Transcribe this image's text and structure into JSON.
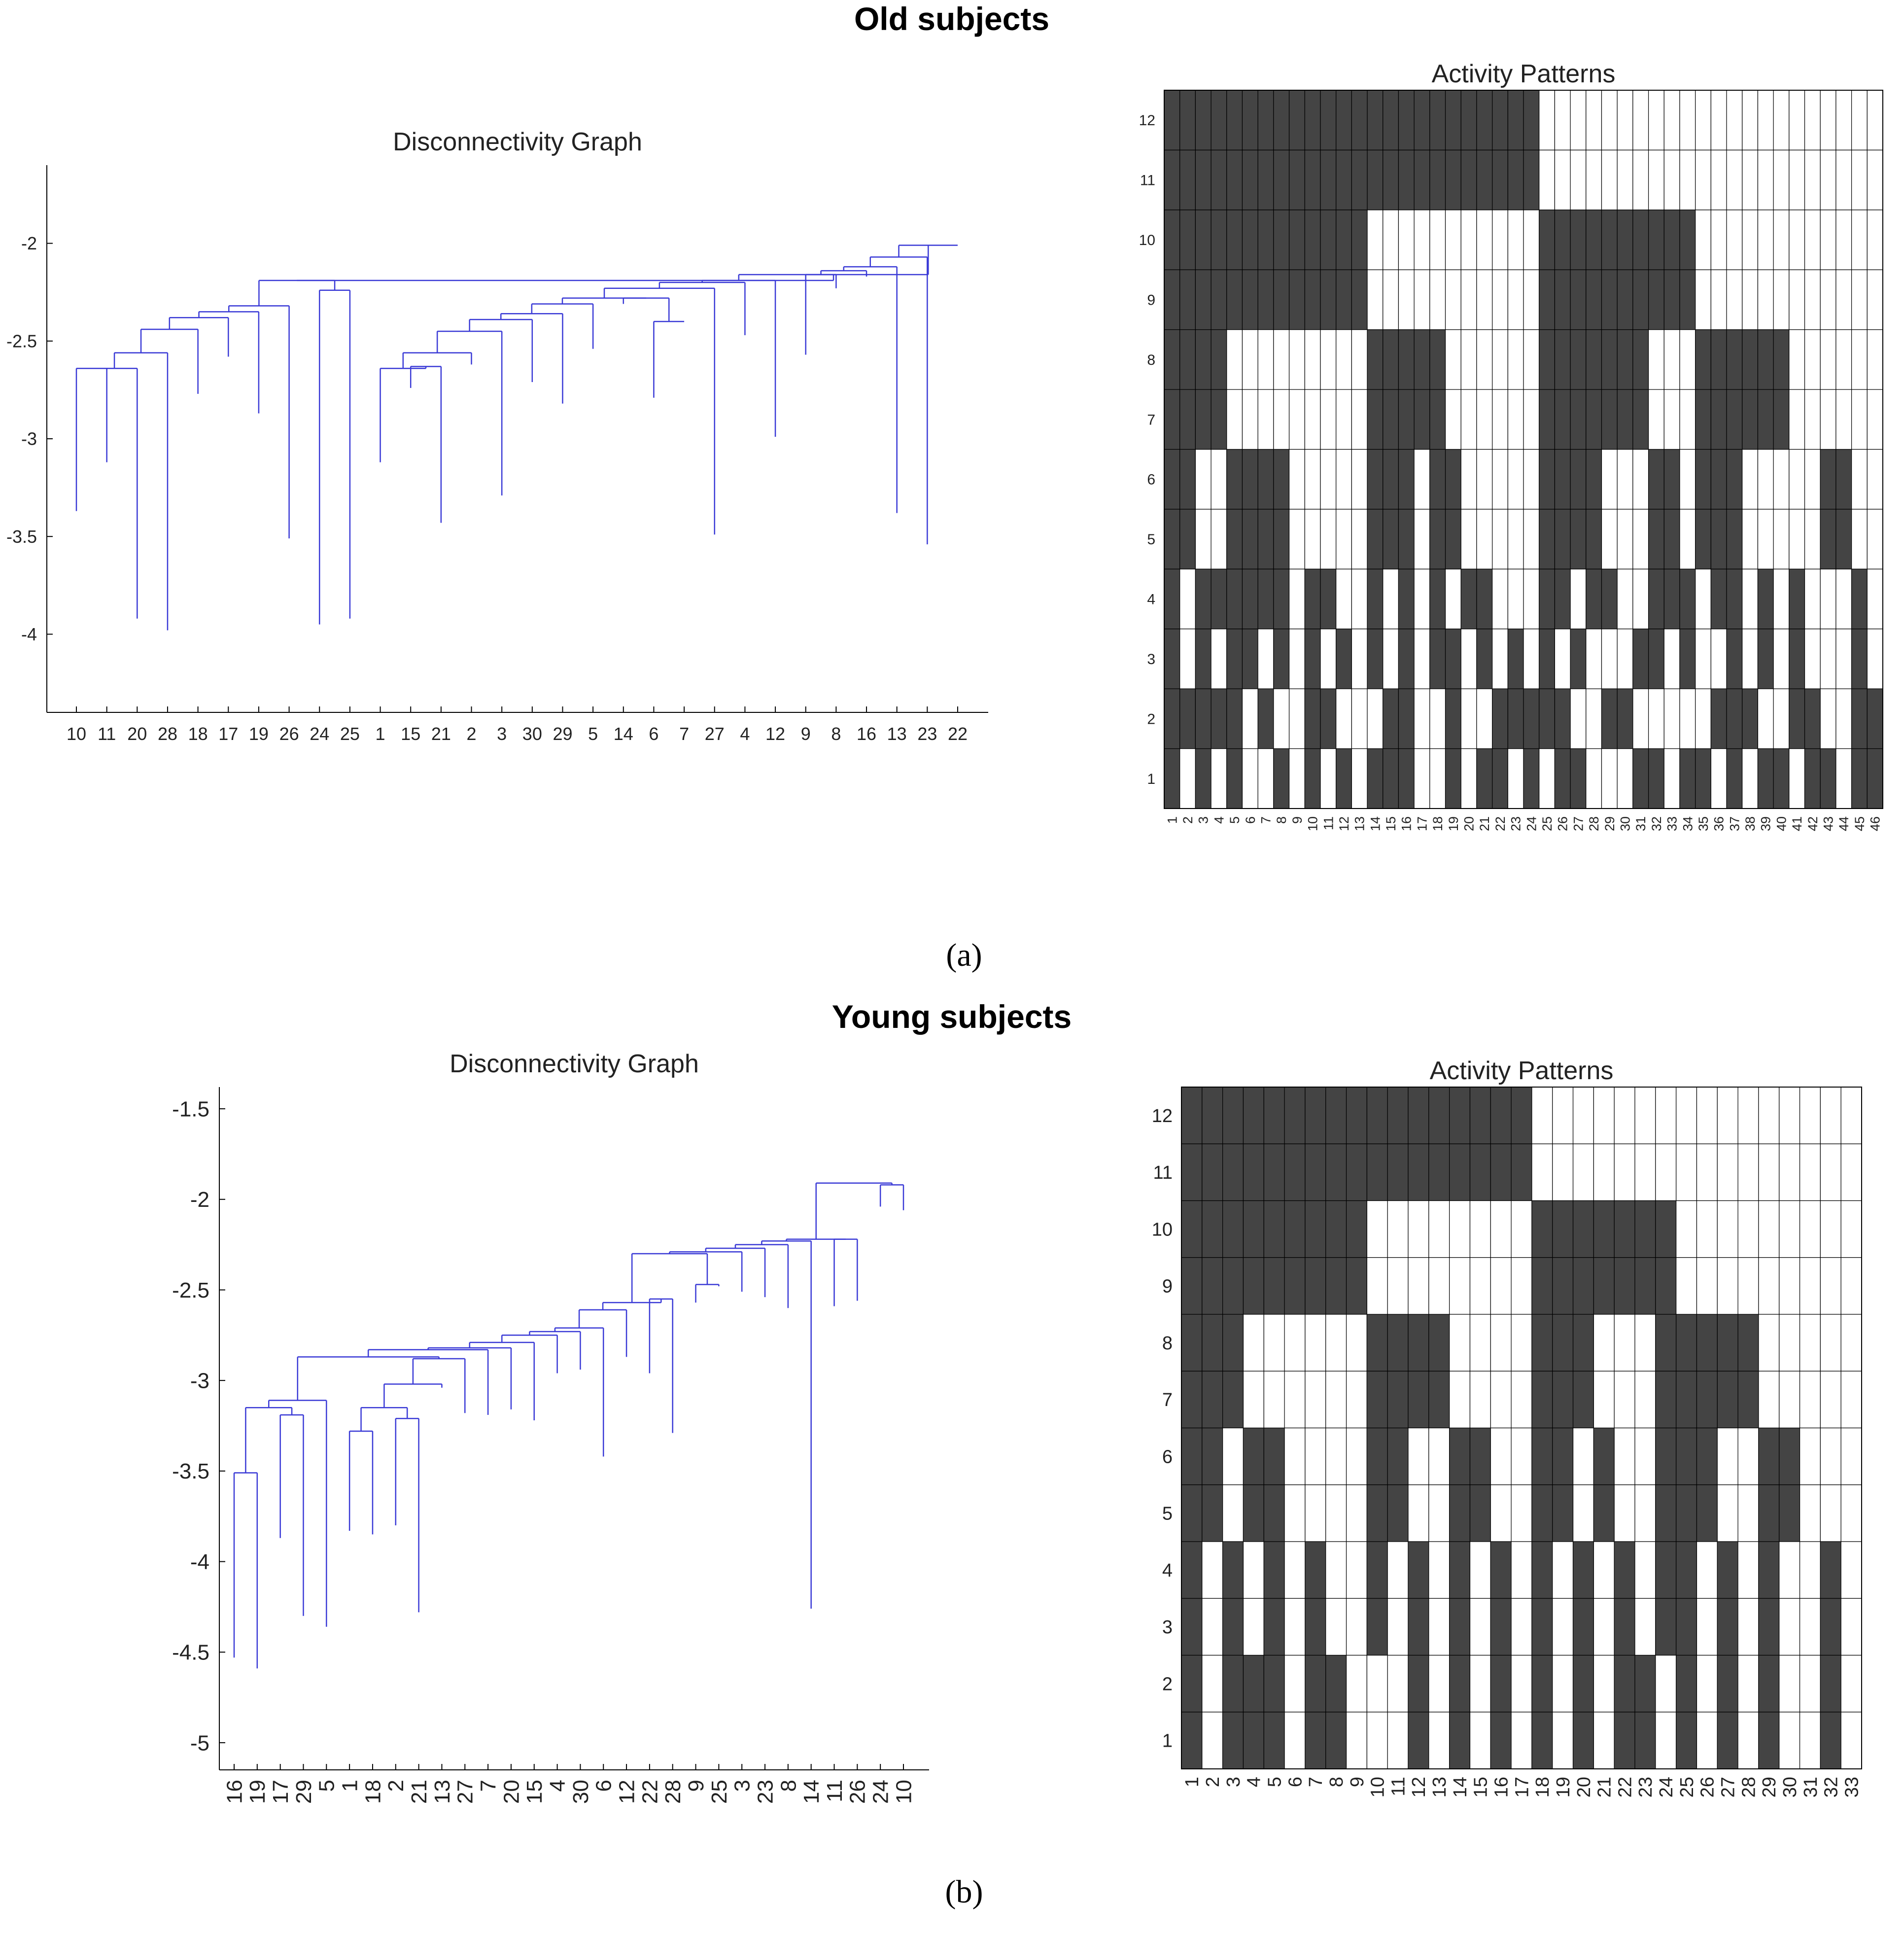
{
  "figure": {
    "panel_a_title": "Old subjects",
    "panel_b_title": "Young subjects",
    "panel_a_label": "(a)",
    "panel_b_label": "(b)"
  },
  "colors": {
    "dendrogram": "#3a3ad6",
    "active": "#444444",
    "inactive": "#ffffff",
    "grid": "#000000",
    "text": "#222222"
  },
  "chart_data": [
    {
      "id": "old_disconnectivity",
      "type": "dendrogram",
      "title": "Disconnectivity Graph",
      "ylim": [
        -4.4,
        -1.6
      ],
      "yticks": [
        -2,
        -2.5,
        -3,
        -3.5,
        -4
      ],
      "leaf_order": [
        10,
        11,
        20,
        28,
        18,
        17,
        19,
        26,
        24,
        25,
        1,
        15,
        21,
        2,
        3,
        30,
        29,
        5,
        14,
        6,
        7,
        27,
        4,
        12,
        9,
        8,
        16,
        13,
        23,
        22
      ],
      "leaf_energies": [
        -3.37,
        -3.12,
        -3.92,
        -3.98,
        -2.77,
        -2.58,
        -2.87,
        -3.51,
        -3.95,
        -3.92,
        -3.12,
        -2.74,
        -3.43,
        -2.62,
        -3.29,
        -2.71,
        -2.82,
        -2.54,
        -2.31,
        -2.79,
        -2.4,
        -3.49,
        -2.47,
        -2.99,
        -2.57,
        -2.23,
        -2.17,
        -3.38,
        -3.54,
        -2.01
      ],
      "merges": [
        [
          10,
          11,
          -2.64
        ],
        [
          10,
          20,
          -2.64
        ],
        [
          10,
          28,
          -2.56
        ],
        [
          10,
          18,
          -2.44
        ],
        [
          10,
          17,
          -2.38
        ],
        [
          10,
          19,
          -2.35
        ],
        [
          10,
          26,
          -2.32
        ],
        [
          24,
          25,
          -2.24
        ],
        [
          10,
          24,
          -2.19
        ],
        [
          15,
          21,
          -2.63
        ],
        [
          1,
          15,
          -2.64
        ],
        [
          1,
          2,
          -2.56
        ],
        [
          1,
          3,
          -2.45
        ],
        [
          1,
          30,
          -2.39
        ],
        [
          1,
          29,
          -2.36
        ],
        [
          1,
          5,
          -2.31
        ],
        [
          6,
          7,
          -2.4
        ],
        [
          14,
          6,
          -2.28
        ],
        [
          1,
          14,
          -2.28
        ],
        [
          1,
          27,
          -2.23
        ],
        [
          1,
          4,
          -2.2
        ],
        [
          1,
          12,
          -2.19
        ],
        [
          9,
          8,
          -2.16
        ],
        [
          9,
          16,
          -2.14
        ],
        [
          9,
          13,
          -2.12
        ],
        [
          9,
          23,
          -2.07
        ],
        [
          9,
          22,
          -2.01
        ],
        [
          1,
          9,
          -2.16
        ],
        [
          10,
          1,
          -2.19
        ]
      ]
    },
    {
      "id": "old_activity",
      "type": "heatmap",
      "title": "Activity Patterns",
      "rows": 12,
      "cols": 46,
      "ylabels": [
        "1",
        "2",
        "3",
        "4",
        "5",
        "6",
        "7",
        "8",
        "9",
        "10",
        "11",
        "12"
      ],
      "xlabels": [
        "1",
        "2",
        "3",
        "4",
        "5",
        "6",
        "7",
        "8",
        "9",
        "10",
        "11",
        "12",
        "13",
        "14",
        "15",
        "16",
        "17",
        "18",
        "19",
        "20",
        "21",
        "22",
        "23",
        "24",
        "25",
        "26",
        "27",
        "28",
        "29",
        "30",
        "31",
        "32",
        "33",
        "34",
        "35",
        "36",
        "37",
        "38",
        "39",
        "40",
        "41",
        "42",
        "43",
        "44",
        "45",
        "46"
      ],
      "row_states": {
        "12": "1111111111111111111111110000000000000000000000",
        "11": "1111111111111111111111110000000000000000000000",
        "10": "1111111111111000000000001111111111000000000000",
        "9": "1111111111111000000000001111111111000000000000",
        "8": "1111000000000111110000001111111000111111000000",
        "7": "1111000000000111110000001111111000111111000000",
        "6": "1100111100000111011000001111000110111000001100",
        "5": "1100111100000111011000001111000110111000001100",
        "4": "1011111101100101010110001101100111011010100010",
        "3": "1010110101010101011010101010001101001010100010",
        "2": "1111101001100011001001111100110000011100110011",
        "1": "1010100101010111001011010110001101101011011011"
      }
    },
    {
      "id": "young_disconnectivity",
      "type": "dendrogram",
      "title": "Disconnectivity Graph",
      "ylim": [
        -5.15,
        -1.38
      ],
      "yticks": [
        -1.5,
        -2,
        -2.5,
        -3,
        -3.5,
        -4,
        -4.5,
        -5
      ],
      "leaf_order": [
        16,
        19,
        17,
        29,
        5,
        1,
        18,
        2,
        21,
        13,
        27,
        7,
        20,
        15,
        4,
        30,
        6,
        12,
        22,
        28,
        9,
        25,
        3,
        23,
        8,
        14,
        11,
        26,
        24,
        10
      ],
      "leaf_energies": [
        -4.53,
        -4.59,
        -3.87,
        -4.3,
        -4.36,
        -3.83,
        -3.85,
        -3.8,
        -4.28,
        -3.04,
        -3.18,
        -3.19,
        -3.16,
        -3.22,
        -2.96,
        -2.94,
        -3.42,
        -2.87,
        -2.96,
        -3.29,
        -2.57,
        -2.48,
        -2.51,
        -2.54,
        -2.6,
        -4.26,
        -2.59,
        -2.56,
        -2.04,
        -2.06
      ],
      "merges": [
        [
          16,
          19,
          -3.51
        ],
        [
          17,
          29,
          -3.19
        ],
        [
          16,
          17,
          -3.15
        ],
        [
          16,
          5,
          -3.11
        ],
        [
          1,
          18,
          -3.28
        ],
        [
          2,
          21,
          -3.21
        ],
        [
          1,
          2,
          -3.15
        ],
        [
          1,
          13,
          -3.02
        ],
        [
          1,
          27,
          -2.88
        ],
        [
          16,
          1,
          -2.87
        ],
        [
          16,
          7,
          -2.83
        ],
        [
          16,
          20,
          -2.82
        ],
        [
          16,
          15,
          -2.79
        ],
        [
          16,
          4,
          -2.75
        ],
        [
          16,
          30,
          -2.73
        ],
        [
          16,
          6,
          -2.71
        ],
        [
          16,
          12,
          -2.61
        ],
        [
          22,
          28,
          -2.55
        ],
        [
          9,
          25,
          -2.47
        ],
        [
          16,
          22,
          -2.57
        ],
        [
          16,
          9,
          -2.3
        ],
        [
          16,
          3,
          -2.29
        ],
        [
          16,
          23,
          -2.27
        ],
        [
          16,
          8,
          -2.25
        ],
        [
          16,
          14,
          -2.23
        ],
        [
          11,
          26,
          -2.22
        ],
        [
          16,
          11,
          -2.22
        ],
        [
          24,
          10,
          -1.92
        ],
        [
          11,
          24,
          -1.91
        ]
      ]
    },
    {
      "id": "young_activity",
      "type": "heatmap",
      "title": "Activity Patterns",
      "rows": 12,
      "cols": 33,
      "ylabels": [
        "1",
        "2",
        "3",
        "4",
        "5",
        "6",
        "7",
        "8",
        "9",
        "10",
        "11",
        "12"
      ],
      "xlabels": [
        "1",
        "2",
        "3",
        "4",
        "5",
        "6",
        "7",
        "8",
        "9",
        "10",
        "11",
        "12",
        "13",
        "14",
        "15",
        "16",
        "17",
        "18",
        "19",
        "20",
        "21",
        "22",
        "23",
        "24",
        "25",
        "26",
        "27",
        "28",
        "29",
        "30",
        "31",
        "32",
        "33"
      ],
      "row_states": {
        "12": "111111111111111110000000000000000",
        "11": "111111111111111110000000000000000",
        "10": "111111111000000001111111000000000",
        "9": "111111111000000001111111000000000",
        "8": "111000000111100001110001111100000",
        "7": "111000000111100001110001111100000",
        "6": "110110000110011001101001110011000",
        "5": "110110000110011001101001110011000",
        "4": "101010100101010101010101101010010",
        "3": "101010100101010101010101101010010",
        "2": "101110110001010101010110101010010",
        "1": "101110110001010101010110101010010"
      }
    }
  ]
}
